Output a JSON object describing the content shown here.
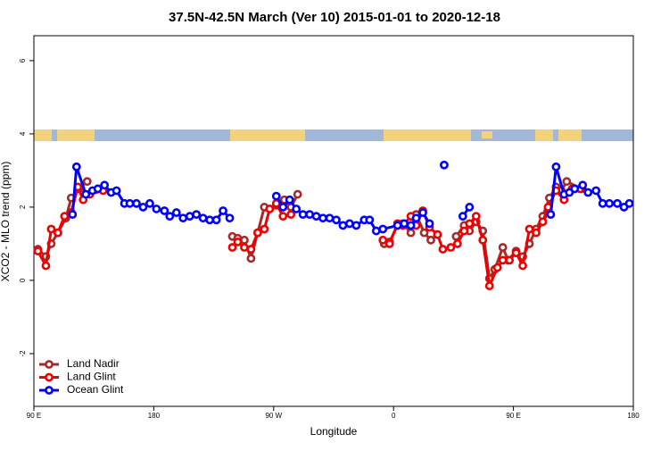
{
  "chart_data": {
    "type": "line",
    "title": "37.5N-42.5N March (Ver 10)   2015-01-01 to 2020-12-18",
    "x_label": "Longitude",
    "y_label": "XCO2 - MLO trend (ppm)",
    "xlim": [
      90,
      540
    ],
    "ylim": [
      -3.44,
      6.68
    ],
    "xticks": [
      {
        "value": 90,
        "label": "90 E"
      },
      180,
      {
        "value": 270,
        "label": "90 W"
      },
      {
        "value": 360,
        "label": "0"
      },
      {
        "value": 450,
        "label": "90 E"
      },
      {
        "value": 540,
        "label": "180"
      }
    ],
    "yticks": [
      -2,
      0,
      2,
      4,
      6
    ],
    "legend": "bottom-left",
    "series": [
      {
        "name": "Land Nadir",
        "color": "#a52a2a",
        "x": [
          93,
          99,
          103,
          108,
          114,
          118,
          124,
          130,
          null,
          239,
          243,
          248,
          253,
          258,
          263,
          267,
          272,
          278,
          283,
          288,
          null,
          353,
          357,
          363,
          367,
          373,
          377,
          383,
          388,
          393,
          null,
          407,
          413,
          417,
          422,
          427,
          432,
          436,
          442,
          446,
          452,
          457,
          462,
          467,
          472,
          477,
          482,
          486,
          490,
          501
        ],
        "values": [
          0.85,
          0.65,
          1.0,
          1.3,
          1.7,
          2.25,
          2.5,
          2.7,
          null,
          1.2,
          1.15,
          1.1,
          0.6,
          1.3,
          2.0,
          1.95,
          2.05,
          2.2,
          2.0,
          2.35,
          null,
          1.0,
          1.05,
          1.5,
          1.55,
          1.3,
          1.8,
          1.3,
          1.1,
          1.25,
          null,
          1.2,
          1.5,
          1.35,
          1.6,
          1.35,
          0.05,
          0.3,
          0.9,
          0.55,
          0.8,
          0.65,
          1.0,
          1.4,
          1.75,
          2.25,
          2.55,
          2.45,
          2.7,
          2.5
        ]
      },
      {
        "name": "Land Glint",
        "color": "#ee0000",
        "x": [
          93,
          99,
          103,
          108,
          113,
          118,
          123,
          127,
          132,
          142,
          null,
          239,
          243,
          248,
          253,
          258,
          263,
          267,
          272,
          277,
          283,
          null,
          352,
          357,
          363,
          367,
          373,
          377,
          382,
          387,
          393,
          397,
          403,
          408,
          413,
          417,
          422,
          427,
          432,
          438,
          442,
          447,
          452,
          457,
          462,
          467,
          472,
          476,
          482,
          488,
          494,
          500
        ],
        "values": [
          0.8,
          0.4,
          1.4,
          1.3,
          1.75,
          1.85,
          2.55,
          2.2,
          2.35,
          2.45,
          null,
          0.9,
          1.05,
          0.9,
          0.85,
          1.3,
          1.4,
          1.95,
          2.1,
          1.75,
          1.8,
          null,
          1.1,
          1.0,
          1.55,
          1.5,
          1.75,
          1.5,
          1.9,
          1.45,
          1.25,
          0.85,
          0.9,
          1.0,
          1.35,
          1.55,
          1.75,
          1.1,
          -0.15,
          0.35,
          0.55,
          0.55,
          0.75,
          0.4,
          1.4,
          1.3,
          1.6,
          2.0,
          2.45,
          2.2,
          2.5,
          2.5
        ]
      },
      {
        "name": "Ocean Glint",
        "color": "#0000ff",
        "x": [
          119,
          122,
          129,
          134,
          138,
          143,
          148,
          152,
          158,
          162,
          167,
          172,
          177,
          182,
          188,
          192,
          197,
          202,
          207,
          212,
          217,
          222,
          227,
          232,
          237,
          null,
          272,
          277,
          282,
          287,
          292,
          297,
          302,
          307,
          312,
          317,
          322,
          327,
          332,
          338,
          342,
          347,
          352,
          363,
          368,
          373,
          377,
          382,
          387,
          null,
          398,
          null,
          412,
          417,
          null,
          478,
          482,
          488,
          492,
          496,
          502,
          506,
          512,
          517,
          522,
          528,
          533,
          537
        ],
        "values": [
          1.8,
          3.1,
          2.35,
          2.45,
          2.5,
          2.6,
          2.4,
          2.45,
          2.1,
          2.1,
          2.1,
          2.0,
          2.1,
          1.95,
          1.9,
          1.75,
          1.85,
          1.7,
          1.75,
          1.8,
          1.7,
          1.65,
          1.65,
          1.9,
          1.7,
          null,
          2.3,
          2.0,
          2.2,
          1.95,
          1.8,
          1.8,
          1.75,
          1.7,
          1.7,
          1.65,
          1.5,
          1.55,
          1.5,
          1.65,
          1.65,
          1.35,
          1.4,
          1.5,
          1.55,
          1.5,
          1.7,
          1.85,
          1.55,
          null,
          3.15,
          null,
          1.75,
          2.0,
          null,
          1.8,
          3.1,
          2.35,
          2.4,
          2.5,
          2.6,
          2.4,
          2.45,
          2.1,
          2.1,
          2.1,
          2.0,
          2.1
        ]
      }
    ]
  }
}
